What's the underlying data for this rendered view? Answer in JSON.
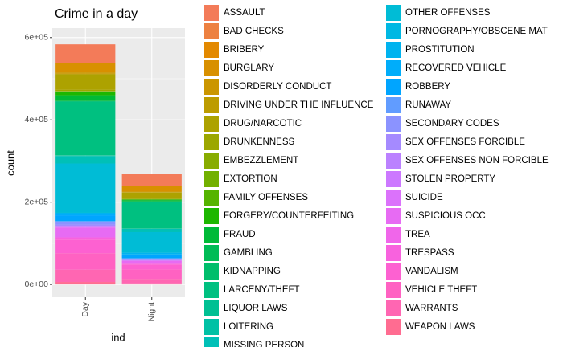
{
  "chart_data": {
    "type": "stacked_bar",
    "title": "Crime in a day",
    "x_label": "ind",
    "y_label": "count",
    "categories": [
      "Day",
      "Night"
    ],
    "ylim": [
      -31000,
      623000
    ],
    "yticks": [
      {
        "value": 0,
        "label": "0e+00"
      },
      {
        "value": 200000,
        "label": "2e+05"
      },
      {
        "value": 400000,
        "label": "4e+05"
      },
      {
        "value": 600000,
        "label": "6e+05"
      }
    ],
    "grid": true,
    "series": [
      {
        "name": "ASSAULT",
        "color": "#F37B59",
        "values": [
          45000,
          28000
        ]
      },
      {
        "name": "BAD CHECKS",
        "color": "#ED8141",
        "values": [
          1000,
          200
        ]
      },
      {
        "name": "BRIBERY",
        "color": "#E38900",
        "values": [
          200,
          100
        ]
      },
      {
        "name": "BURGLARY",
        "color": "#D89000",
        "values": [
          22000,
          14000
        ]
      },
      {
        "name": "DISORDERLY CONDUCT",
        "color": "#CB9600",
        "values": [
          3000,
          1500
        ]
      },
      {
        "name": "DRIVING UNDER THE INFLUENCE",
        "color": "#BD9C00",
        "values": [
          1500,
          800
        ]
      },
      {
        "name": "DRUG/NARCOTIC",
        "color": "#ADA200",
        "values": [
          38000,
          15000
        ]
      },
      {
        "name": "DRUNKENNESS",
        "color": "#9CA700",
        "values": [
          2500,
          1700
        ]
      },
      {
        "name": "EMBEZZLEMENT",
        "color": "#88AC00",
        "values": [
          1000,
          200
        ]
      },
      {
        "name": "EXTORTION",
        "color": "#72B000",
        "values": [
          200,
          50
        ]
      },
      {
        "name": "FAMILY OFFENSES",
        "color": "#55B400",
        "values": [
          400,
          100
        ]
      },
      {
        "name": "FORGERY/COUNTERFEITING",
        "color": "#1DB700",
        "values": [
          9000,
          1600
        ]
      },
      {
        "name": "FRAUD",
        "color": "#00BA38",
        "values": [
          14000,
          3000
        ]
      },
      {
        "name": "GAMBLING",
        "color": "#00BC56",
        "values": [
          100,
          50
        ]
      },
      {
        "name": "KIDNAPPING",
        "color": "#00BE6C",
        "values": [
          1500,
          800
        ]
      },
      {
        "name": "LARCENY/THEFT",
        "color": "#00C080",
        "values": [
          130000,
          65000
        ]
      },
      {
        "name": "LIQUOR LAWS",
        "color": "#00C093",
        "values": [
          1200,
          700
        ]
      },
      {
        "name": "LOITERING",
        "color": "#00C1A5",
        "values": [
          1000,
          200
        ]
      },
      {
        "name": "MISSING PERSON",
        "color": "#00C0B7",
        "values": [
          18000,
          8000
        ]
      },
      {
        "name": "OTHER OFFENSES",
        "color": "#00BCD6",
        "values": [
          120000,
          50000
        ]
      },
      {
        "name": "PORNOGRAPHY/OBSCENE MAT",
        "color": "#00B8E3",
        "values": [
          20,
          5
        ]
      },
      {
        "name": "PROSTITUTION",
        "color": "#00B3EF",
        "values": [
          3500,
          4000
        ]
      },
      {
        "name": "RECOVERED VEHICLE",
        "color": "#00ADFA",
        "values": [
          2500,
          600
        ]
      },
      {
        "name": "ROBBERY",
        "color": "#00A5FF",
        "values": [
          14000,
          9000
        ]
      },
      {
        "name": "RUNAWAY",
        "color": "#619CFF",
        "values": [
          1500,
          400
        ]
      },
      {
        "name": "SECONDARY CODES",
        "color": "#8B93FF",
        "values": [
          7000,
          3000
        ]
      },
      {
        "name": "SEX OFFENSES FORCIBLE",
        "color": "#A58AFF",
        "values": [
          3000,
          1400
        ]
      },
      {
        "name": "SEX OFFENSES NON FORCIBLE",
        "color": "#BB81FF",
        "values": [
          100,
          50
        ]
      },
      {
        "name": "STOLEN PROPERTY",
        "color": "#CC78FF",
        "values": [
          3500,
          1000
        ]
      },
      {
        "name": "SUICIDE",
        "color": "#DB72FB",
        "values": [
          400,
          100
        ]
      },
      {
        "name": "SUSPICIOUS OCC",
        "color": "#E76BF3",
        "values": [
          24000,
          7000
        ]
      },
      {
        "name": "TREA",
        "color": "#F066EA",
        "values": [
          5,
          1
        ]
      },
      {
        "name": "TRESPASS",
        "color": "#F862DE",
        "values": [
          5500,
          2000
        ]
      },
      {
        "name": "VANDALISM",
        "color": "#FD61D1",
        "values": [
          33000,
          12000
        ]
      },
      {
        "name": "VEHICLE THEFT",
        "color": "#FF62C2",
        "values": [
          40000,
          23000
        ]
      },
      {
        "name": "WARRANTS",
        "color": "#FF66B2",
        "values": [
          30000,
          11000
        ]
      },
      {
        "name": "WEAPON LAWS",
        "color": "#FF6C91",
        "values": [
          6000,
          2600
        ]
      }
    ]
  }
}
